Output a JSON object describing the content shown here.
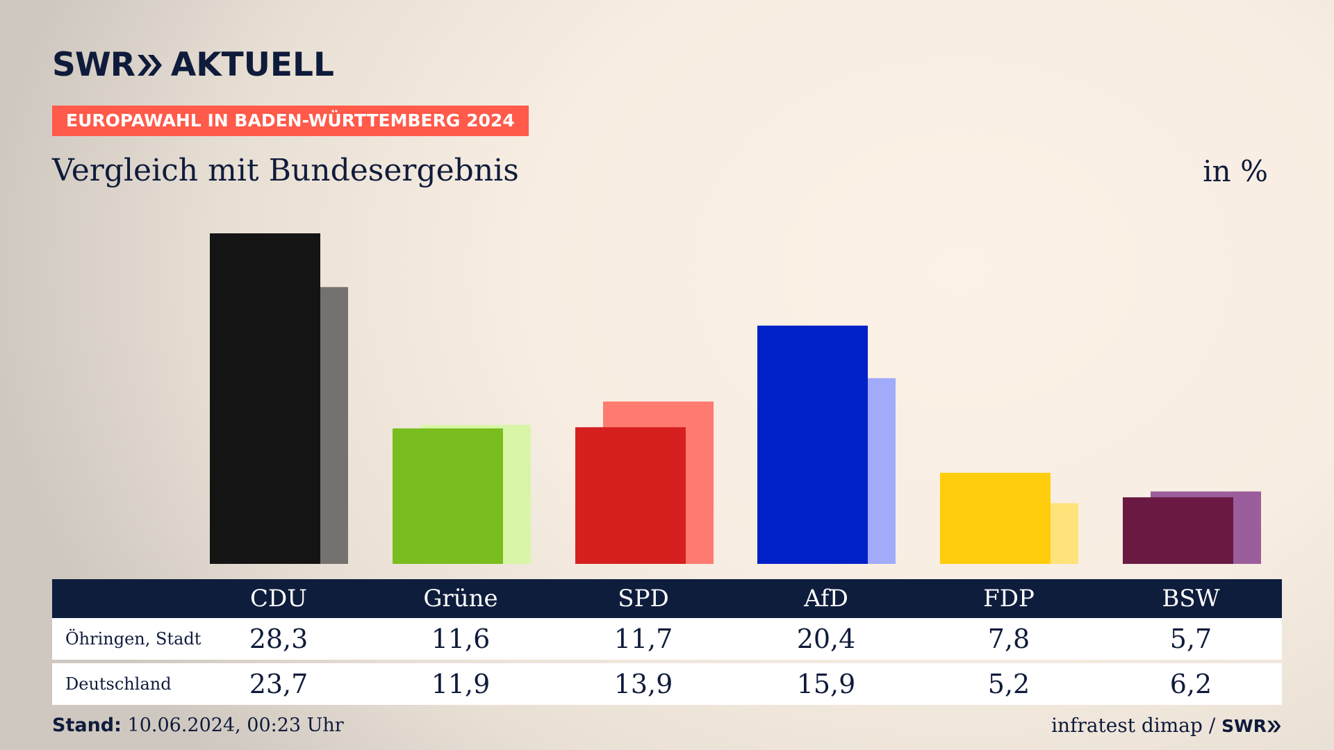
{
  "header": {
    "logo_left": "SWR",
    "logo_right": "AKTUELL",
    "badge": "EUROPAWAHL IN BADEN-WÜRTTEMBERG 2024",
    "subtitle": "Vergleich mit Bundesergebnis",
    "unit": "in %"
  },
  "colors": {
    "navy": "#0f1b3a",
    "badge": "#ff5a4a",
    "table_head": "#0f1d3d"
  },
  "chart_data": {
    "type": "bar",
    "title": "Vergleich mit Bundesergebnis",
    "ylabel": "in %",
    "categories": [
      "CDU",
      "Grüne",
      "SPD",
      "AfD",
      "FDP",
      "BSW"
    ],
    "series": [
      {
        "name": "Öhringen, Stadt",
        "values": [
          28.3,
          11.6,
          11.7,
          20.4,
          7.8,
          5.7
        ],
        "colors": [
          "#141414",
          "#7abd1e",
          "#d62020",
          "#0021c8",
          "#ffcd0c",
          "#6a1a42"
        ]
      },
      {
        "name": "Deutschland",
        "values": [
          23.7,
          11.9,
          13.9,
          15.9,
          5.2,
          6.2
        ],
        "colors": [
          "#74716e",
          "#d9f6a8",
          "#ff7a6f",
          "#a1abfa",
          "#ffe37a",
          "#9b5e9c"
        ]
      }
    ],
    "ylim": [
      0,
      28.3
    ],
    "grid": false,
    "legend": "table-below"
  },
  "table": {
    "headers": [
      "CDU",
      "Grüne",
      "SPD",
      "AfD",
      "FDP",
      "BSW"
    ],
    "rows": [
      {
        "label": "Öhringen, Stadt",
        "values": [
          "28,3",
          "11,6",
          "11,7",
          "20,4",
          "7,8",
          "5,7"
        ]
      },
      {
        "label": "Deutschland",
        "values": [
          "23,7",
          "11,9",
          "13,9",
          "15,9",
          "5,2",
          "6,2"
        ]
      }
    ]
  },
  "footer": {
    "stand_label": "Stand:",
    "stand_value": "10.06.2024, 00:23 Uhr",
    "source": "infratest dimap /",
    "source_logo": "SWR"
  }
}
